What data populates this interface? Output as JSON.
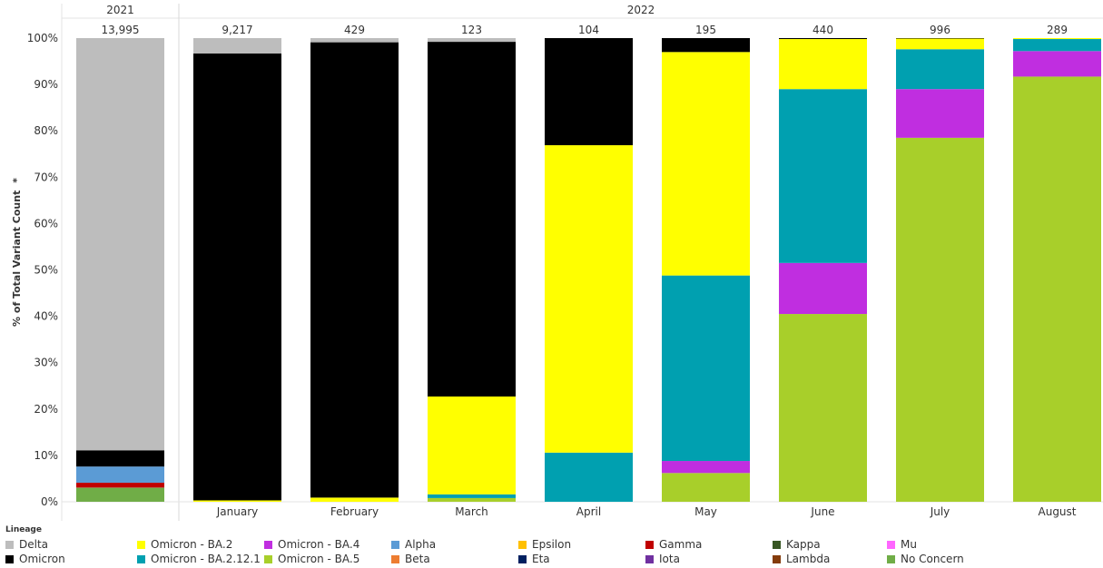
{
  "chart_data": {
    "type": "bar",
    "stacked": "percent",
    "ylabel": "% of Total Variant Count",
    "ylabel_marker": "*",
    "yticks": [
      "0%",
      "10%",
      "20%",
      "30%",
      "40%",
      "50%",
      "60%",
      "70%",
      "80%",
      "90%",
      "100%"
    ],
    "ylim": [
      0,
      100
    ],
    "legend_title": "Lineage",
    "legend_position": "bottom",
    "lineages": [
      {
        "name": "Delta",
        "color": "#bdbdbd"
      },
      {
        "name": "Omicron",
        "color": "#000000"
      },
      {
        "name": "Omicron - BA.2",
        "color": "#ffff00"
      },
      {
        "name": "Omicron - BA.2.12.1",
        "color": "#00a0b0"
      },
      {
        "name": "Omicron - BA.4",
        "color": "#c02ee0"
      },
      {
        "name": "Omicron - BA.5",
        "color": "#a8cf2a"
      },
      {
        "name": "Alpha",
        "color": "#5b9bd5"
      },
      {
        "name": "Beta",
        "color": "#ed7d31"
      },
      {
        "name": "Epsilon",
        "color": "#ffc000"
      },
      {
        "name": "Eta",
        "color": "#002060"
      },
      {
        "name": "Gamma",
        "color": "#c00000"
      },
      {
        "name": "Iota",
        "color": "#7030a0"
      },
      {
        "name": "Kappa",
        "color": "#375623"
      },
      {
        "name": "Lambda",
        "color": "#843c0c"
      },
      {
        "name": "Mu",
        "color": "#ff66ff"
      },
      {
        "name": "No Concern",
        "color": "#70ad47"
      }
    ],
    "groups": [
      {
        "label": "2021",
        "bars": [
          {
            "label": "",
            "total": "13,995",
            "values": {
              "No Concern": 3.0,
              "Lambda": 0.1,
              "Gamma": 1.0,
              "Alpha": 3.5,
              "Omicron": 3.5,
              "Delta": 88.9
            }
          }
        ]
      },
      {
        "label": "2022",
        "bars": [
          {
            "label": "January",
            "total": "9,217",
            "values": {
              "Omicron - BA.2": 0.3,
              "Omicron": 96.4,
              "Delta": 3.3
            }
          },
          {
            "label": "February",
            "total": "429",
            "values": {
              "Omicron - BA.2": 0.9,
              "Omicron": 98.2,
              "Delta": 0.9
            }
          },
          {
            "label": "March",
            "total": "123",
            "values": {
              "Omicron - BA.5": 0.8,
              "Omicron - BA.2.12.1": 0.8,
              "Omicron - BA.2": 21.1,
              "Omicron": 76.5,
              "Delta": 0.8
            }
          },
          {
            "label": "April",
            "total": "104",
            "values": {
              "Omicron - BA.2.12.1": 10.6,
              "Omicron - BA.2": 66.3,
              "Omicron": 23.1
            }
          },
          {
            "label": "May",
            "total": "195",
            "values": {
              "Omicron - BA.5": 6.2,
              "Omicron - BA.4": 2.6,
              "Omicron - BA.2.12.1": 40.0,
              "Omicron - BA.2": 48.2,
              "Omicron": 3.0
            }
          },
          {
            "label": "June",
            "total": "440",
            "values": {
              "Omicron - BA.5": 40.5,
              "Omicron - BA.4": 11.0,
              "Omicron - BA.2.12.1": 37.5,
              "Omicron - BA.2": 10.8,
              "Omicron": 0.2
            }
          },
          {
            "label": "July",
            "total": "996",
            "values": {
              "Omicron - BA.5": 78.5,
              "Omicron - BA.4": 10.5,
              "Omicron - BA.2.12.1": 8.6,
              "Omicron - BA.2": 2.3,
              "Omicron": 0.1
            }
          },
          {
            "label": "August",
            "total": "289",
            "values": {
              "Omicron - BA.5": 91.7,
              "Omicron - BA.4": 5.5,
              "Omicron - BA.2.12.1": 2.6,
              "Omicron - BA.2": 0.2
            }
          }
        ]
      }
    ]
  }
}
